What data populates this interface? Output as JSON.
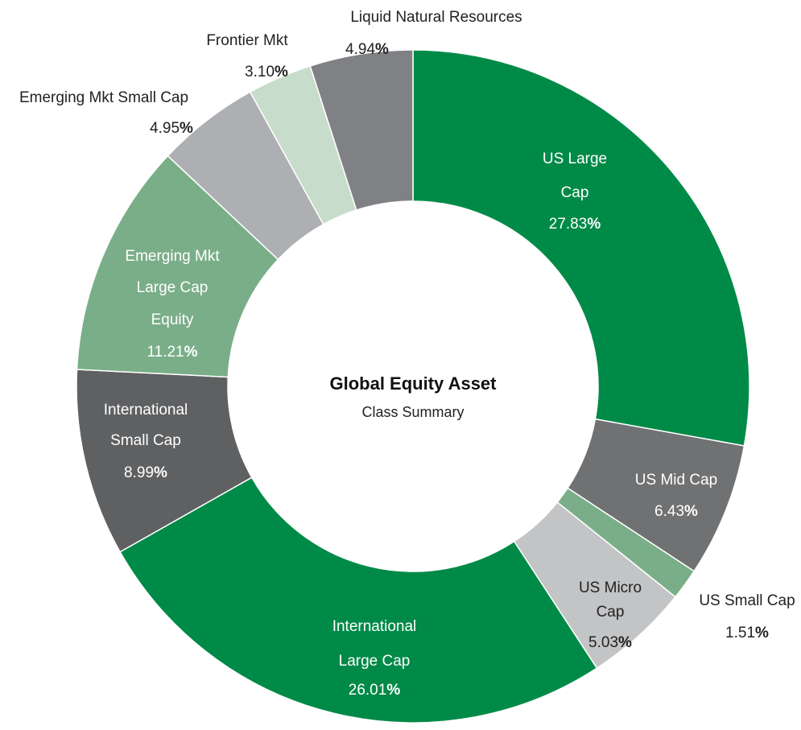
{
  "chart_data": {
    "type": "donut",
    "title": "Global Equity Asset",
    "subtitle": "Class Summary",
    "categories": [
      "US Large Cap",
      "US Mid Cap",
      "US Small Cap",
      "US Micro Cap",
      "International Large Cap",
      "International Small Cap",
      "Emerging Mkt Large Cap Equity",
      "Emerging Mkt Small Cap",
      "Frontier Mkt",
      "Liquid Natural Resources"
    ],
    "values": [
      27.83,
      6.43,
      1.51,
      5.03,
      26.01,
      8.99,
      11.21,
      4.95,
      3.1,
      4.94
    ],
    "value_labels": [
      "27.83%",
      "6.43%",
      "1.51%",
      "5.03%",
      "26.01%",
      "8.99%",
      "11.21%",
      "4.95%",
      "3.10%",
      "4.94%"
    ],
    "colors": [
      "#008a47",
      "#707173",
      "#7aae88",
      "#c3c4c6",
      "#008a47",
      "#5f6062",
      "#7aae88",
      "#aeafb2",
      "#c8dccb",
      "#808184"
    ]
  }
}
